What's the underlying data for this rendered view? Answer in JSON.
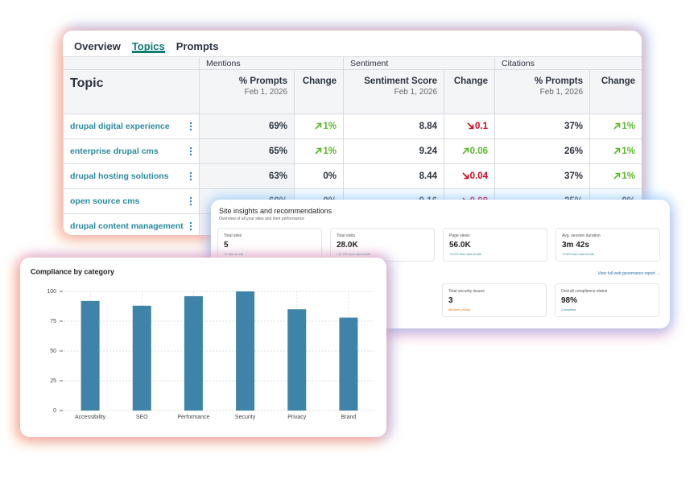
{
  "topics_table": {
    "tabs": [
      "Overview",
      "Topics",
      "Prompts"
    ],
    "active_tab": 1,
    "groups": [
      "Mentions",
      "Sentiment",
      "Citations"
    ],
    "columns": [
      {
        "label": "Topic"
      },
      {
        "label": "% Prompts",
        "sub": "Feb 1, 2026"
      },
      {
        "label": "Change"
      },
      {
        "label": "Sentiment Score",
        "sub": "Feb 1, 2026"
      },
      {
        "label": "Change"
      },
      {
        "label": "% Prompts",
        "sub": "Feb 1, 2026"
      },
      {
        "label": "Change"
      }
    ],
    "rows": [
      {
        "topic": "drupal digital experience",
        "cells": [
          {
            "text": "69%"
          },
          {
            "text": "1%",
            "trend": "up"
          },
          {
            "text": "8.84"
          },
          {
            "text": "0.1",
            "trend": "down"
          },
          {
            "text": "37%"
          },
          {
            "text": "1%",
            "trend": "up"
          }
        ]
      },
      {
        "topic": "enterprise drupal cms",
        "cells": [
          {
            "text": "65%"
          },
          {
            "text": "1%",
            "trend": "up"
          },
          {
            "text": "9.24"
          },
          {
            "text": "0.06",
            "trend": "up"
          },
          {
            "text": "26%"
          },
          {
            "text": "1%",
            "trend": "up"
          }
        ]
      },
      {
        "topic": "drupal hosting solutions",
        "cells": [
          {
            "text": "63%"
          },
          {
            "text": "0%"
          },
          {
            "text": "8.44"
          },
          {
            "text": "0.04",
            "trend": "down"
          },
          {
            "text": "37%"
          },
          {
            "text": "1%",
            "trend": "up"
          }
        ]
      },
      {
        "topic": "open source cms",
        "cells": [
          {
            "text": "60%"
          },
          {
            "text": "0%"
          },
          {
            "text": "9.16"
          },
          {
            "text": "0.08",
            "trend": "down"
          },
          {
            "text": "25%"
          },
          {
            "text": "0%"
          }
        ]
      },
      {
        "topic": "drupal content management",
        "cells": []
      }
    ]
  },
  "site_insights": {
    "title": "Site insights and recommendations",
    "subtitle": "Overview of all your sites and their performance",
    "tiles": [
      {
        "label": "Total sites",
        "value": "5",
        "note": "+2 this month"
      },
      {
        "label": "Total visits",
        "value": "28.0K",
        "note": "+12.5% from last month"
      },
      {
        "label": "Page views",
        "value": "56.0K",
        "note": "+8.2% from last month"
      },
      {
        "label": "Avg. session duration",
        "value": "3m 42s",
        "note": "+9.8% from last month"
      }
    ],
    "link": "View full web governance report →",
    "status_tiles": [
      {
        "label": "Total security issues",
        "value": "3",
        "note": "Medium priority",
        "status": "warning"
      },
      {
        "label": "Overall compliance status",
        "value": "98%",
        "note": "Compliant",
        "status": "ok"
      }
    ]
  },
  "chart_data": {
    "type": "bar",
    "title": "Compliance by category",
    "categories": [
      "Accessibility",
      "SEO",
      "Performance",
      "Security",
      "Privacy",
      "Brand"
    ],
    "values": [
      92,
      88,
      96,
      100,
      85,
      78
    ],
    "color": "#3e84a8",
    "ylim": [
      0,
      100
    ],
    "yticks": [
      0,
      25,
      50,
      75,
      100
    ],
    "grid": true
  }
}
